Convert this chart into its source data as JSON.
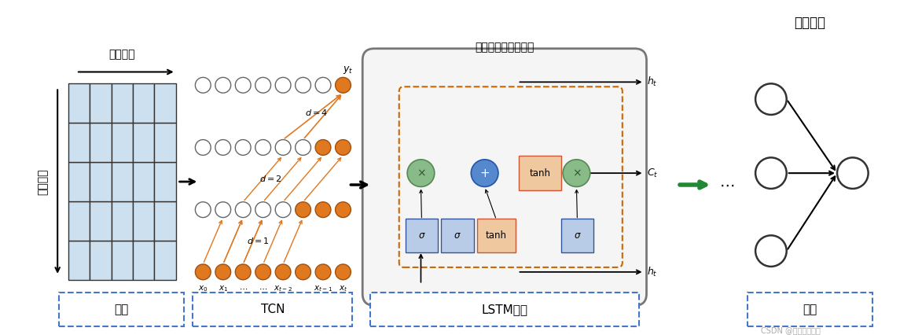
{
  "bg_color": "#ffffff",
  "title_text": "全连接层",
  "input_label": "输入",
  "tcn_label": "TCN",
  "lstm_label": "LSTM网络",
  "output_label": "输出",
  "feature_dim": "特征维度",
  "time_dim": "时间维度",
  "gate_label": "遗忘门输入门输出门",
  "watermark": "CSDN @机器学习之心",
  "grid_rows": 5,
  "grid_cols": 5,
  "grid_color": "#cce0f0",
  "grid_border": "#333333",
  "tcn_node_color_empty": "#ffffff",
  "tcn_node_color_filled": "#e07820",
  "sigma_box_color": "#b8cce8",
  "tanh_box_color": "#f0c8a0",
  "circle_color_green": "#88bb88",
  "circle_color_blue": "#5588cc",
  "arrow_color_orange": "#e07820",
  "arrow_color_black": "#222222",
  "arrow_color_green": "#228833",
  "label_box_color": "#4477cc"
}
